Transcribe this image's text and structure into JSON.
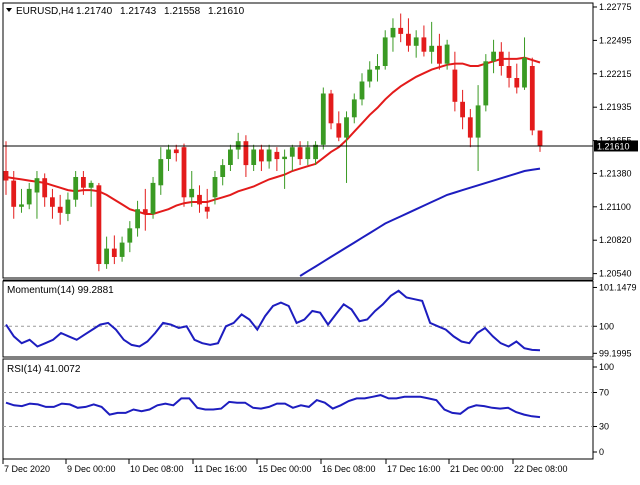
{
  "header": {
    "symbol": "EURUSD,H4",
    "open": "1.21740",
    "high": "1.21743",
    "low": "1.21558",
    "close": "1.21610",
    "current_price_label": "1.21610"
  },
  "indicators": {
    "momentum_label": "Momentum(14) 99.2881",
    "rsi_label": "RSI(14) 41.0072"
  },
  "colors": {
    "bull": "#3a9a23",
    "bear": "#e31b1b",
    "ma_fast": "#e31b1b",
    "ma_slow": "#1d1dbf",
    "indicator_line": "#1d1dbf",
    "frame": "#000000",
    "level_dash": "#9a9a9a"
  },
  "chart_data": [
    {
      "type": "candlestick",
      "title": "EURUSD,H4",
      "y_ticks": [
        "1.22775",
        "1.22495",
        "1.22215",
        "1.21935",
        "1.21655",
        "1.21380",
        "1.21100",
        "1.20820",
        "1.20540"
      ],
      "ylim": [
        1.2052,
        1.228
      ],
      "current_price": 1.2161,
      "x_ticks": [
        "7 Dec 2020",
        "9 Dec 00:00",
        "10 Dec 08:00",
        "11 Dec 16:00",
        "15 Dec 00:00",
        "16 Dec 08:00",
        "17 Dec 16:00",
        "21 Dec 00:00",
        "22 Dec 08:00"
      ],
      "candles": [
        {
          "o": 1.214,
          "h": 1.2165,
          "l": 1.212,
          "c": 1.2132
        },
        {
          "o": 1.2132,
          "h": 1.214,
          "l": 1.21,
          "c": 1.211
        },
        {
          "o": 1.211,
          "h": 1.2125,
          "l": 1.2105,
          "c": 1.2112
        },
        {
          "o": 1.2112,
          "h": 1.213,
          "l": 1.2108,
          "c": 1.2125
        },
        {
          "o": 1.2122,
          "h": 1.214,
          "l": 1.21,
          "c": 1.2134
        },
        {
          "o": 1.2134,
          "h": 1.2138,
          "l": 1.211,
          "c": 1.2118
        },
        {
          "o": 1.2118,
          "h": 1.2125,
          "l": 1.21,
          "c": 1.211
        },
        {
          "o": 1.211,
          "h": 1.212,
          "l": 1.2095,
          "c": 1.2105
        },
        {
          "o": 1.2104,
          "h": 1.2122,
          "l": 1.2098,
          "c": 1.2116
        },
        {
          "o": 1.2116,
          "h": 1.214,
          "l": 1.211,
          "c": 1.2135
        },
        {
          "o": 1.2135,
          "h": 1.214,
          "l": 1.212,
          "c": 1.2126
        },
        {
          "o": 1.2126,
          "h": 1.2132,
          "l": 1.211,
          "c": 1.213
        },
        {
          "o": 1.2128,
          "h": 1.213,
          "l": 1.2056,
          "c": 1.2062
        },
        {
          "o": 1.2062,
          "h": 1.2085,
          "l": 1.2058,
          "c": 1.2075
        },
        {
          "o": 1.2075,
          "h": 1.2086,
          "l": 1.2062,
          "c": 1.2068
        },
        {
          "o": 1.2068,
          "h": 1.2085,
          "l": 1.2064,
          "c": 1.208
        },
        {
          "o": 1.208,
          "h": 1.2098,
          "l": 1.2072,
          "c": 1.2092
        },
        {
          "o": 1.2092,
          "h": 1.2115,
          "l": 1.2085,
          "c": 1.2108
        },
        {
          "o": 1.2108,
          "h": 1.2125,
          "l": 1.209,
          "c": 1.2104
        },
        {
          "o": 1.2104,
          "h": 1.2135,
          "l": 1.21,
          "c": 1.213
        },
        {
          "o": 1.2128,
          "h": 1.216,
          "l": 1.212,
          "c": 1.215
        },
        {
          "o": 1.215,
          "h": 1.2162,
          "l": 1.214,
          "c": 1.2158
        },
        {
          "o": 1.2158,
          "h": 1.2162,
          "l": 1.2148,
          "c": 1.2155
        },
        {
          "o": 1.216,
          "h": 1.2163,
          "l": 1.211,
          "c": 1.2118
        },
        {
          "o": 1.2118,
          "h": 1.214,
          "l": 1.211,
          "c": 1.2125
        },
        {
          "o": 1.212,
          "h": 1.2128,
          "l": 1.2105,
          "c": 1.2112
        },
        {
          "o": 1.211,
          "h": 1.2125,
          "l": 1.21,
          "c": 1.2106
        },
        {
          "o": 1.2118,
          "h": 1.214,
          "l": 1.2112,
          "c": 1.2135
        },
        {
          "o": 1.2135,
          "h": 1.215,
          "l": 1.2128,
          "c": 1.2145
        },
        {
          "o": 1.2145,
          "h": 1.2162,
          "l": 1.214,
          "c": 1.2158
        },
        {
          "o": 1.2158,
          "h": 1.2172,
          "l": 1.215,
          "c": 1.2165
        },
        {
          "o": 1.2165,
          "h": 1.217,
          "l": 1.2135,
          "c": 1.2145
        },
        {
          "o": 1.2145,
          "h": 1.2162,
          "l": 1.214,
          "c": 1.2158
        },
        {
          "o": 1.2158,
          "h": 1.2162,
          "l": 1.214,
          "c": 1.2148
        },
        {
          "o": 1.2148,
          "h": 1.2162,
          "l": 1.2142,
          "c": 1.2158
        },
        {
          "o": 1.2156,
          "h": 1.216,
          "l": 1.214,
          "c": 1.215
        },
        {
          "o": 1.215,
          "h": 1.2158,
          "l": 1.2125,
          "c": 1.2152
        },
        {
          "o": 1.2152,
          "h": 1.2162,
          "l": 1.214,
          "c": 1.216
        },
        {
          "o": 1.216,
          "h": 1.2165,
          "l": 1.2145,
          "c": 1.215
        },
        {
          "o": 1.215,
          "h": 1.2165,
          "l": 1.2145,
          "c": 1.216
        },
        {
          "o": 1.215,
          "h": 1.2165,
          "l": 1.2145,
          "c": 1.2162
        },
        {
          "o": 1.2162,
          "h": 1.221,
          "l": 1.2158,
          "c": 1.2205
        },
        {
          "o": 1.2205,
          "h": 1.2208,
          "l": 1.2175,
          "c": 1.218
        },
        {
          "o": 1.218,
          "h": 1.219,
          "l": 1.2165,
          "c": 1.2168
        },
        {
          "o": 1.2168,
          "h": 1.219,
          "l": 1.213,
          "c": 1.2185
        },
        {
          "o": 1.2185,
          "h": 1.2205,
          "l": 1.218,
          "c": 1.22
        },
        {
          "o": 1.22,
          "h": 1.2222,
          "l": 1.2195,
          "c": 1.2215
        },
        {
          "o": 1.2215,
          "h": 1.2232,
          "l": 1.221,
          "c": 1.2225
        },
        {
          "o": 1.2225,
          "h": 1.2238,
          "l": 1.2215,
          "c": 1.2228
        },
        {
          "o": 1.2228,
          "h": 1.2258,
          "l": 1.2225,
          "c": 1.2252
        },
        {
          "o": 1.2252,
          "h": 1.2268,
          "l": 1.224,
          "c": 1.226
        },
        {
          "o": 1.226,
          "h": 1.2272,
          "l": 1.2248,
          "c": 1.2255
        },
        {
          "o": 1.2255,
          "h": 1.2268,
          "l": 1.224,
          "c": 1.2245
        },
        {
          "o": 1.2245,
          "h": 1.2258,
          "l": 1.2235,
          "c": 1.2252
        },
        {
          "o": 1.2252,
          "h": 1.2262,
          "l": 1.2236,
          "c": 1.224
        },
        {
          "o": 1.224,
          "h": 1.2265,
          "l": 1.223,
          "c": 1.2245
        },
        {
          "o": 1.2245,
          "h": 1.2255,
          "l": 1.2225,
          "c": 1.223
        },
        {
          "o": 1.223,
          "h": 1.225,
          "l": 1.2225,
          "c": 1.2246
        },
        {
          "o": 1.2225,
          "h": 1.224,
          "l": 1.219,
          "c": 1.2198
        },
        {
          "o": 1.2198,
          "h": 1.2208,
          "l": 1.2175,
          "c": 1.2185
        },
        {
          "o": 1.2185,
          "h": 1.2192,
          "l": 1.216,
          "c": 1.2168
        },
        {
          "o": 1.2168,
          "h": 1.2212,
          "l": 1.214,
          "c": 1.2195
        },
        {
          "o": 1.2195,
          "h": 1.2238,
          "l": 1.219,
          "c": 1.2232
        },
        {
          "o": 1.2232,
          "h": 1.225,
          "l": 1.2222,
          "c": 1.224
        },
        {
          "o": 1.224,
          "h": 1.2248,
          "l": 1.222,
          "c": 1.2228
        },
        {
          "o": 1.2228,
          "h": 1.224,
          "l": 1.221,
          "c": 1.2218
        },
        {
          "o": 1.2218,
          "h": 1.223,
          "l": 1.2205,
          "c": 1.221
        },
        {
          "o": 1.221,
          "h": 1.2252,
          "l": 1.2208,
          "c": 1.2235
        },
        {
          "o": 1.2228,
          "h": 1.2235,
          "l": 1.217,
          "c": 1.2174
        },
        {
          "o": 1.2174,
          "h": 1.2174,
          "l": 1.2156,
          "c": 1.2161
        }
      ],
      "series": [
        {
          "name": "MA fast",
          "values": [
            1.2135,
            1.2134,
            1.2133,
            1.2132,
            1.2131,
            1.213,
            1.2128,
            1.2126,
            1.2124,
            1.2123,
            1.2124,
            1.2124,
            1.2123,
            1.212,
            1.2116,
            1.2112,
            1.2108,
            1.2106,
            1.2104,
            1.2104,
            1.2106,
            1.2108,
            1.2111,
            1.2113,
            1.2114,
            1.2114,
            1.2114,
            1.2116,
            1.2118,
            1.212,
            1.2123,
            1.2125,
            1.2127,
            1.213,
            1.2133,
            1.2135,
            1.2137,
            1.214,
            1.2142,
            1.2144,
            1.2146,
            1.2151,
            1.2156,
            1.216,
            1.2166,
            1.2173,
            1.218,
            1.2187,
            1.2193,
            1.22,
            1.2206,
            1.2211,
            1.2215,
            1.2219,
            1.2222,
            1.2225,
            1.2227,
            1.2229,
            1.223,
            1.223,
            1.2228,
            1.2228,
            1.223,
            1.2232,
            1.2234,
            1.2234,
            1.2234,
            1.2235,
            1.2233,
            1.2231
          ]
        },
        {
          "name": "MA slow",
          "values": [
            null,
            null,
            null,
            null,
            null,
            null,
            null,
            null,
            null,
            null,
            null,
            null,
            null,
            null,
            null,
            null,
            null,
            null,
            null,
            null,
            null,
            null,
            null,
            null,
            null,
            null,
            null,
            null,
            null,
            null,
            null,
            null,
            null,
            null,
            null,
            null,
            null,
            null,
            1.2052,
            1.2056,
            1.206,
            1.2064,
            1.2068,
            1.2072,
            1.2076,
            1.208,
            1.2084,
            1.2088,
            1.2092,
            1.2096,
            1.2099,
            1.2102,
            1.2105,
            1.2108,
            1.2111,
            1.2114,
            1.2117,
            1.212,
            1.2122,
            1.2124,
            1.2126,
            1.2128,
            1.213,
            1.2132,
            1.2134,
            1.2136,
            1.2138,
            1.214,
            1.2141,
            1.2142
          ]
        }
      ]
    },
    {
      "type": "line",
      "title": "Momentum(14) 99.2881",
      "y_ticks": [
        "101.1479",
        "100",
        "99.1995"
      ],
      "ylim": [
        99.15,
        101.25
      ],
      "series": [
        {
          "name": "Momentum(14)",
          "values": [
            100.05,
            99.7,
            99.5,
            99.6,
            99.4,
            99.5,
            99.6,
            99.8,
            99.7,
            99.6,
            99.75,
            99.9,
            100.05,
            100.1,
            99.9,
            99.6,
            99.45,
            99.4,
            99.55,
            99.8,
            100.1,
            100.05,
            99.95,
            100.0,
            99.6,
            99.5,
            99.45,
            99.5,
            100.0,
            100.1,
            100.35,
            100.2,
            99.9,
            100.3,
            100.6,
            100.7,
            100.6,
            100.1,
            100.2,
            100.45,
            100.4,
            100.05,
            100.35,
            100.65,
            100.5,
            100.15,
            100.2,
            100.45,
            100.65,
            100.9,
            101.05,
            100.85,
            100.8,
            100.75,
            100.1,
            100.0,
            99.9,
            99.7,
            99.55,
            99.5,
            99.8,
            99.95,
            99.7,
            99.5,
            99.4,
            99.55,
            99.35,
            99.3,
            99.29
          ]
        }
      ]
    },
    {
      "type": "line",
      "title": "RSI(14) 41.0072",
      "y_ticks": [
        "100",
        "70",
        "30",
        "0"
      ],
      "ylim": [
        0,
        100
      ],
      "series": [
        {
          "name": "RSI(14)",
          "values": [
            58,
            55,
            54,
            57,
            56,
            53,
            53,
            57,
            56,
            52,
            53,
            56,
            53,
            44,
            46,
            46,
            50,
            48,
            50,
            55,
            57,
            55,
            63,
            63,
            52,
            50,
            50,
            51,
            59,
            58,
            58,
            52,
            51,
            53,
            57,
            57,
            52,
            55,
            53,
            61,
            58,
            51,
            55,
            60,
            63,
            63,
            65,
            67,
            63,
            63,
            65,
            65,
            65,
            63,
            61,
            50,
            46,
            45,
            52,
            55,
            54,
            52,
            51,
            52,
            47,
            44,
            42,
            41
          ]
        }
      ],
      "levels": [
        70,
        30
      ]
    }
  ]
}
